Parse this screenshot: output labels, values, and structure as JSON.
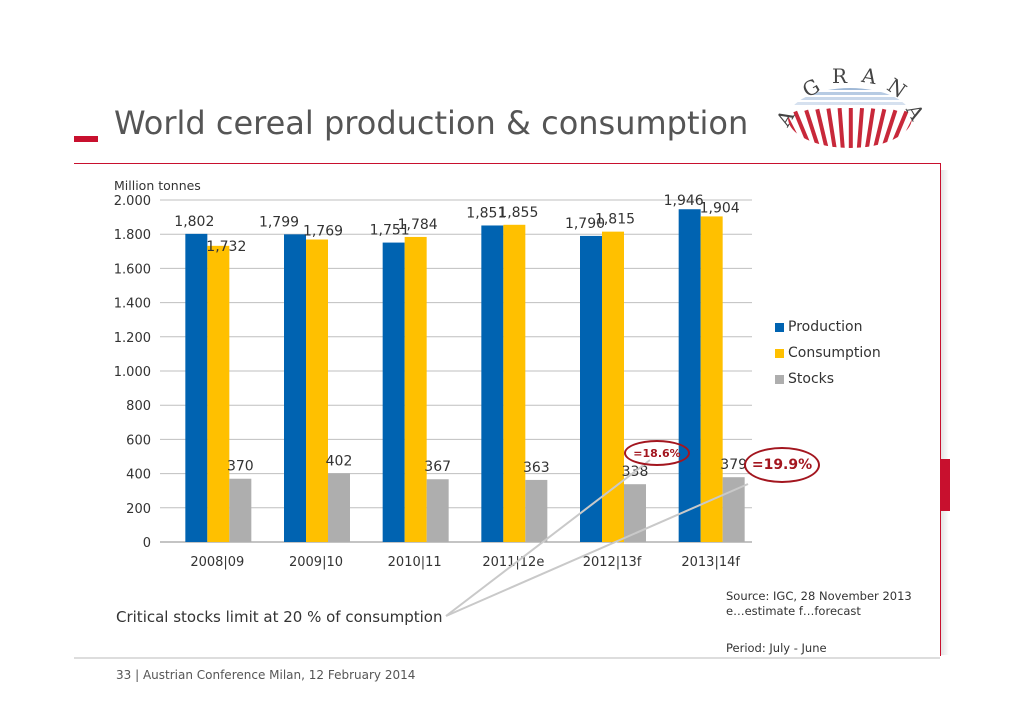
{
  "slide": {
    "title": "World cereal production & consumption",
    "footer": "33  |  Austrian Conference Milan, 12 February 2014",
    "critical_note": "Critical stocks limit at 20 % of consumption",
    "source_line1": "Source: IGC, 28 November 2013",
    "source_line2": "e…estimate   f…forecast",
    "period": "Period: July - June",
    "logo_letters": [
      "A",
      "G",
      "R",
      "A",
      "N",
      "A"
    ],
    "accent_color": "#c8102e"
  },
  "callouts": {
    "c2012": "=18.6%",
    "c2013": "=19.9%"
  },
  "chart_data": {
    "type": "bar",
    "ylabel": "Million tonnes",
    "ylim": [
      0,
      2000
    ],
    "yticks": [
      0,
      200,
      400,
      600,
      800,
      1000,
      1200,
      1400,
      1600,
      1800,
      2000
    ],
    "ytick_labels": [
      "0",
      "200",
      "400",
      "600",
      "800",
      "1.000",
      "1.200",
      "1.400",
      "1.600",
      "1.800",
      "2.000"
    ],
    "grid": true,
    "legend_position": "right",
    "categories": [
      "2008|09",
      "2009|10",
      "2010|11",
      "2011|12e",
      "2012|13f",
      "2013|14f"
    ],
    "series": [
      {
        "name": "Production",
        "color": "#0063b1",
        "values": [
          1802,
          1799,
          1751,
          1851,
          1790,
          1946
        ],
        "labels": [
          "1,802",
          "1,799",
          "1,751",
          "1,851",
          "1,790",
          "1,946"
        ]
      },
      {
        "name": "Consumption",
        "color": "#ffc000",
        "values": [
          1732,
          1769,
          1784,
          1855,
          1815,
          1904
        ],
        "labels": [
          "1,732",
          "1,769",
          "1,784",
          "1,855",
          "1,815",
          "1,904"
        ]
      },
      {
        "name": "Stocks",
        "color": "#aeaeae",
        "values": [
          370,
          402,
          367,
          363,
          338,
          379
        ],
        "labels": [
          "370",
          "402",
          "367",
          "363",
          "338",
          "379"
        ]
      }
    ]
  }
}
